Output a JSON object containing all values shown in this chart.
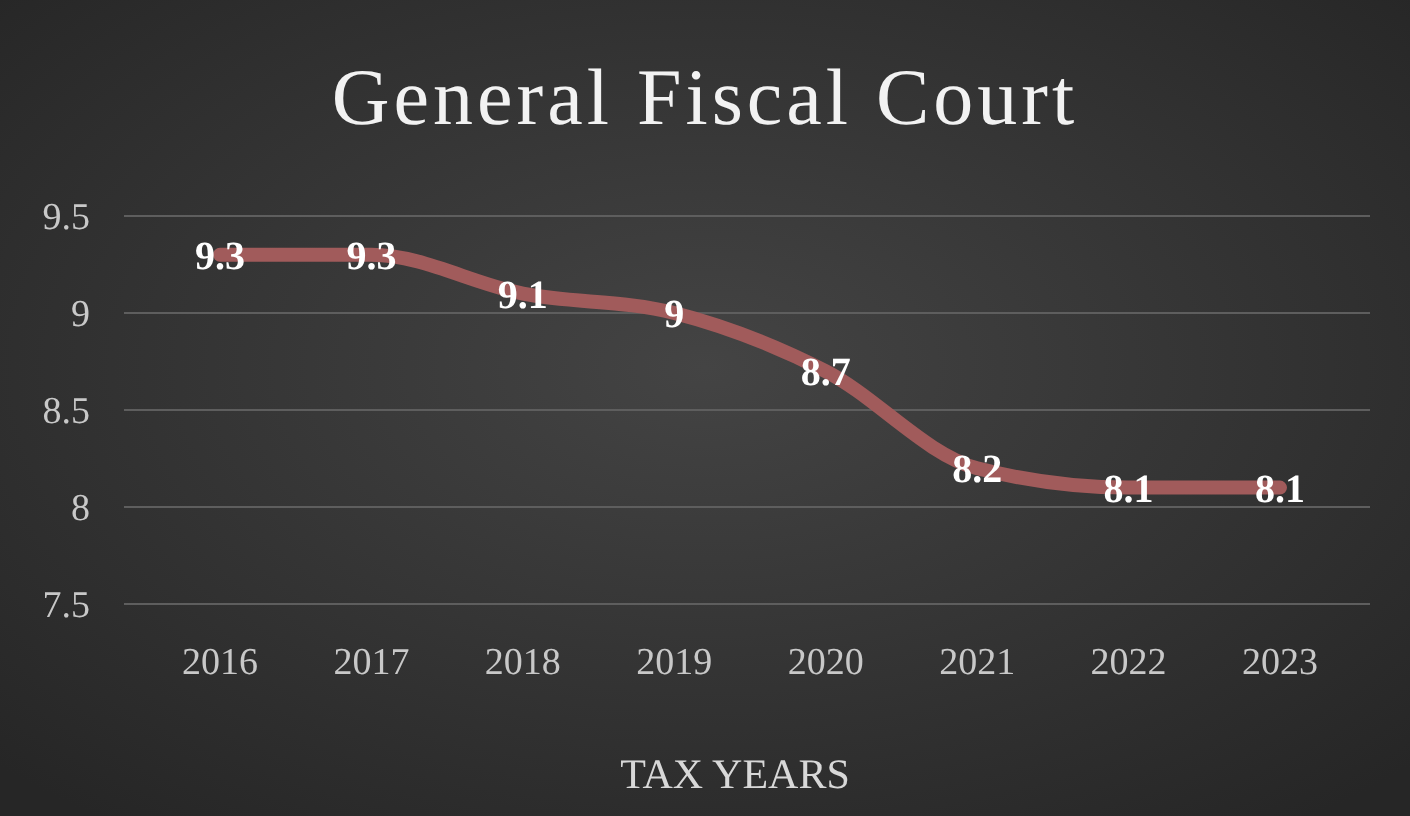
{
  "chart_data": {
    "type": "line",
    "title": "General Fiscal Court",
    "xlabel": "TAX YEARS",
    "categories": [
      "2016",
      "2017",
      "2018",
      "2019",
      "2020",
      "2021",
      "2022",
      "2023"
    ],
    "series": [
      {
        "color": "#a15b5b",
        "values": [
          9.3,
          9.3,
          9.1,
          9,
          8.7,
          8.2,
          8.1,
          8.1
        ]
      }
    ],
    "ylim": [
      7.5,
      9.5
    ],
    "yticks": [
      7.5,
      9,
      8.5,
      8,
      9.5
    ],
    "grid": "y",
    "data_labels": true,
    "marker": "none",
    "line_style": "solid"
  }
}
